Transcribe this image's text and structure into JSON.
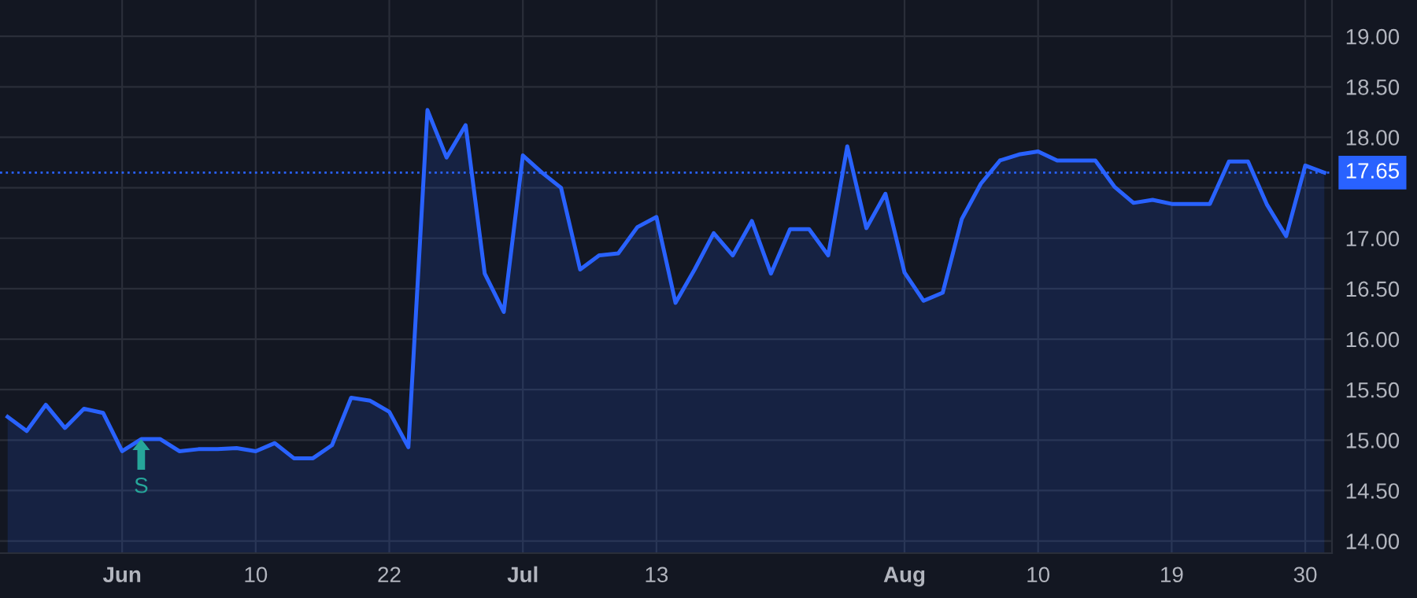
{
  "chart_data": {
    "type": "area",
    "categories": [
      null,
      null,
      null,
      null,
      null,
      null,
      "Jun",
      null,
      null,
      null,
      null,
      null,
      null,
      "10",
      null,
      null,
      null,
      null,
      null,
      null,
      "22",
      null,
      null,
      null,
      null,
      null,
      null,
      "Jul",
      null,
      null,
      null,
      null,
      null,
      null,
      "13",
      null,
      null,
      null,
      null,
      null,
      null,
      null,
      null,
      null,
      null,
      null,
      null,
      "Aug",
      null,
      null,
      null,
      null,
      null,
      null,
      "10",
      null,
      null,
      null,
      null,
      null,
      null,
      "19",
      null,
      null,
      null,
      null,
      null,
      null,
      "30",
      null
    ],
    "series": [
      {
        "color": "#2962ff",
        "values": [
          15.23,
          15.09,
          15.35,
          15.12,
          15.31,
          15.27,
          14.89,
          15.01,
          15.01,
          14.89,
          14.91,
          14.91,
          14.92,
          14.89,
          14.97,
          14.82,
          14.82,
          14.95,
          15.42,
          15.39,
          15.28,
          14.93,
          18.27,
          17.8,
          18.12,
          16.65,
          16.27,
          17.82,
          17.65,
          17.5,
          16.69,
          16.83,
          16.85,
          17.11,
          17.21,
          16.36,
          16.69,
          17.05,
          16.83,
          17.17,
          16.65,
          17.09,
          17.09,
          16.83,
          17.91,
          17.1,
          17.44,
          16.66,
          16.38,
          16.46,
          17.19,
          17.54,
          17.77,
          17.83,
          17.86,
          17.77,
          17.77,
          17.77,
          17.51,
          17.35,
          17.38,
          17.34,
          17.34,
          17.34,
          17.76,
          17.76,
          17.33,
          17.02,
          17.72,
          17.65
        ]
      }
    ],
    "ylim": [
      13.88,
      19.36
    ],
    "yticks": [
      {
        "value": 14,
        "label": "14.00"
      },
      {
        "value": 14.5,
        "label": "14.50"
      },
      {
        "value": 15,
        "label": "15.00"
      },
      {
        "value": 15.5,
        "label": "15.50"
      },
      {
        "value": 16,
        "label": "16.00"
      },
      {
        "value": 16.5,
        "label": "16.50"
      },
      {
        "value": 17,
        "label": "17.00"
      },
      {
        "value": 17.5,
        "label": null
      },
      {
        "value": 18,
        "label": "18.00"
      },
      {
        "value": 18.5,
        "label": "18.50"
      },
      {
        "value": 19,
        "label": "19.00"
      }
    ],
    "ref_lines": [
      {
        "axis": "y",
        "value": 17.65,
        "label": "17.65",
        "color": "#2962ff",
        "line_style": "dotted"
      }
    ],
    "annotations": [
      {
        "text": "S",
        "y": 15.01
      }
    ],
    "grid": true,
    "marker": "none",
    "line_style": "solid"
  }
}
